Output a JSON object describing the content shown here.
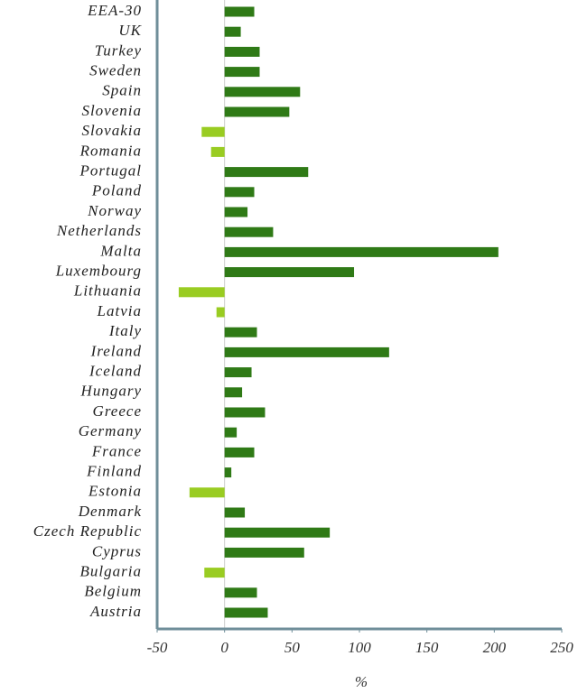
{
  "chart_data": {
    "type": "hbar",
    "x_label": "%",
    "categories": [
      "EEA-30",
      "UK",
      "Turkey",
      "Sweden",
      "Spain",
      "Slovenia",
      "Slovakia",
      "Romania",
      "Portugal",
      "Poland",
      "Norway",
      "Netherlands",
      "Malta",
      "Luxembourg",
      "Lithuania",
      "Latvia",
      "Italy",
      "Ireland",
      "Iceland",
      "Hungary",
      "Greece",
      "Germany",
      "France",
      "Finland",
      "Estonia",
      "Denmark",
      "Czech Republic",
      "Cyprus",
      "Bulgaria",
      "Belgium",
      "Austria"
    ],
    "values": [
      22,
      12,
      26,
      26,
      56,
      48,
      -17,
      -10,
      62,
      22,
      17,
      36,
      203,
      96,
      -34,
      -6,
      24,
      122,
      20,
      13,
      30,
      9,
      22,
      5,
      -26,
      15,
      78,
      59,
      -15,
      24,
      32
    ],
    "color": "#2f7a16",
    "negative_color": "#99cc22",
    "xlim": [
      -50,
      250
    ],
    "xticks": [
      -50,
      0,
      50,
      100,
      150,
      200,
      250
    ]
  }
}
